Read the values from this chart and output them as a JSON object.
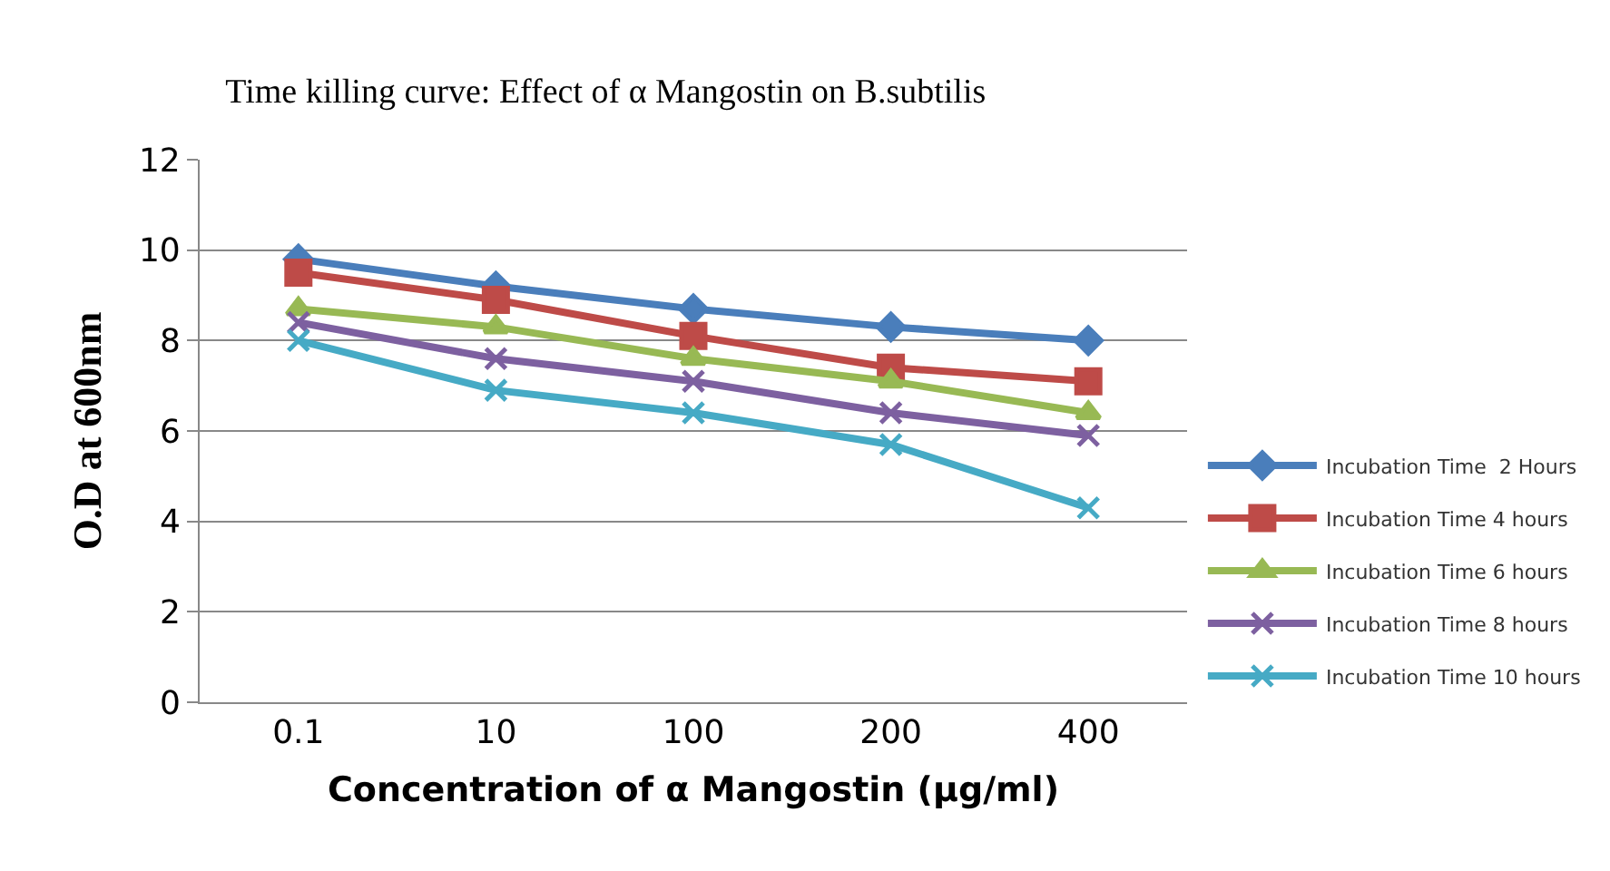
{
  "chart_data": {
    "type": "line",
    "title": "Time killing curve: Effect of α Mangostin on B.subtilis",
    "xlabel": "Concentration of α Mangostin (µg/ml)",
    "ylabel": "O.D at 600nm",
    "categories": [
      "0.1",
      "10",
      "100",
      "200",
      "400"
    ],
    "series": [
      {
        "name": "Incubation Time  2 Hours",
        "color": "#4a7ebb",
        "marker": "diamond",
        "values": [
          9.8,
          9.2,
          8.7,
          8.3,
          8.0
        ]
      },
      {
        "name": "Incubation Time 4 hours",
        "color": "#be4b48",
        "marker": "square",
        "values": [
          9.5,
          8.9,
          8.1,
          7.4,
          7.1
        ]
      },
      {
        "name": "Incubation Time 6 hours",
        "color": "#98b954",
        "marker": "triangle",
        "values": [
          8.7,
          8.3,
          7.6,
          7.1,
          6.4
        ]
      },
      {
        "name": "Incubation Time 8 hours",
        "color": "#7d60a0",
        "marker": "cross",
        "values": [
          8.4,
          7.6,
          7.1,
          6.4,
          5.9
        ]
      },
      {
        "name": "Incubation Time 10 hours",
        "color": "#46aac5",
        "marker": "cross",
        "values": [
          8.0,
          6.9,
          6.4,
          5.7,
          4.3
        ]
      }
    ],
    "ylim": [
      0,
      12
    ],
    "yticks": [
      0,
      2,
      4,
      6,
      8,
      10,
      12
    ],
    "grid": "y",
    "legend": "bottom right",
    "line_style": "solid"
  }
}
